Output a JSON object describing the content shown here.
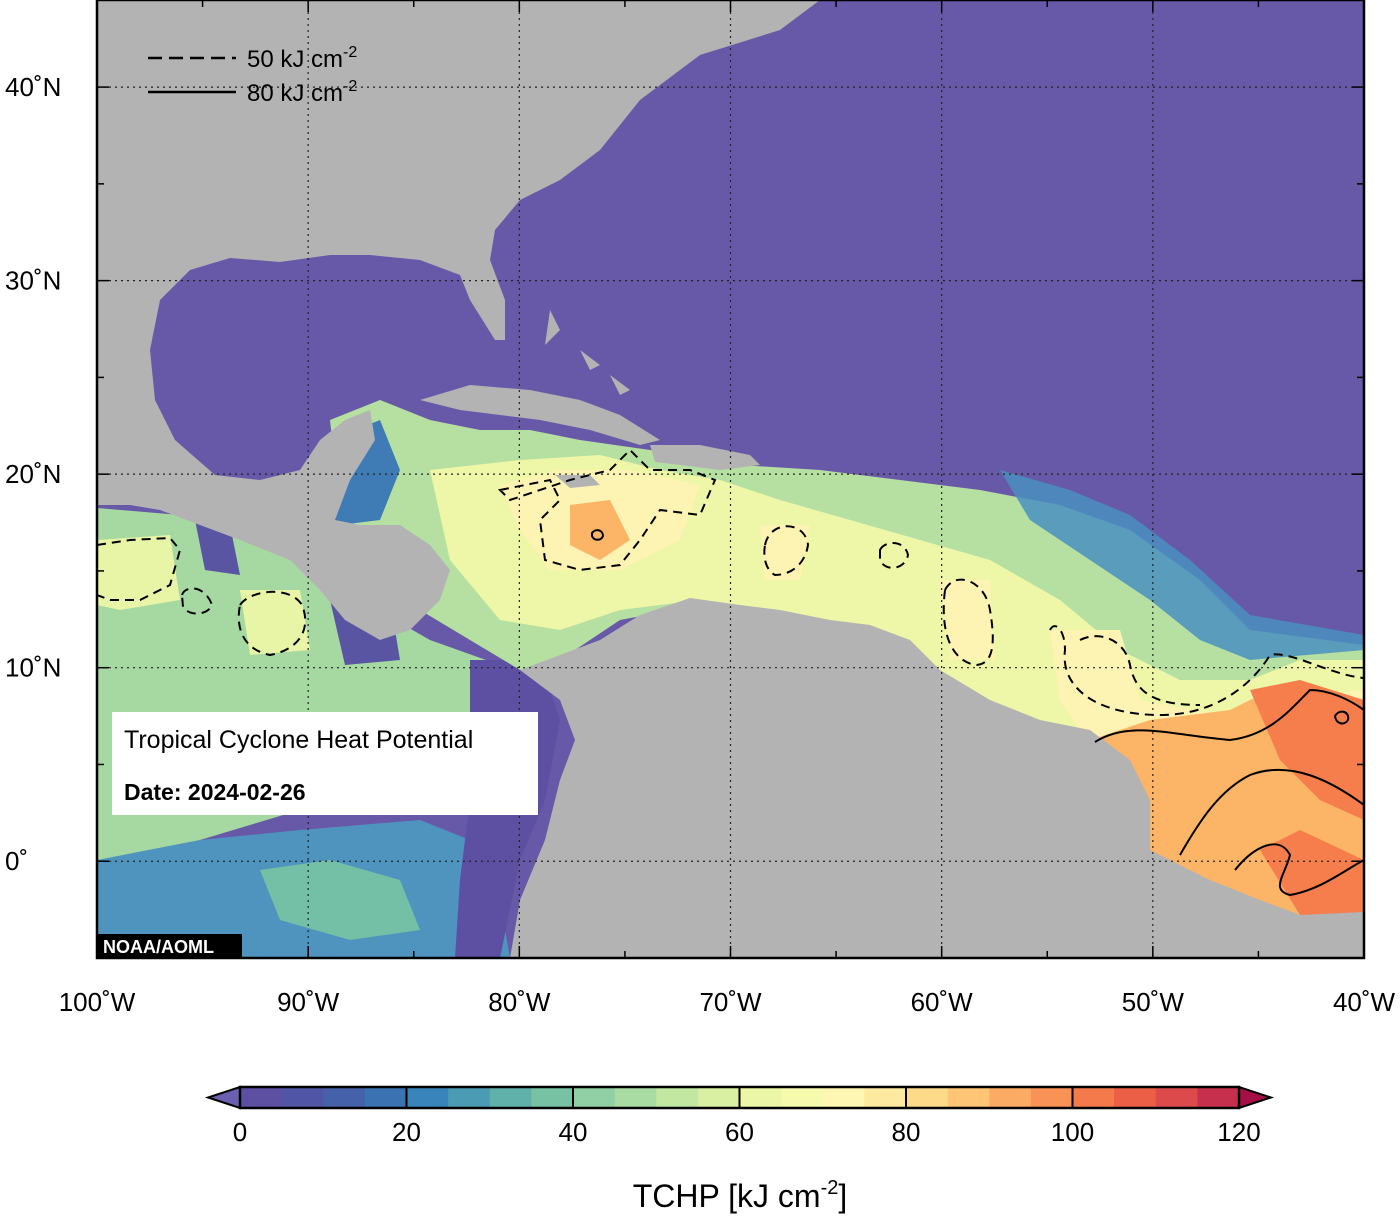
{
  "map": {
    "title": "Tropical Cyclone Heat Potential",
    "date_text": "Date: 2024-02-26",
    "credit": "NOAA/AOML",
    "region": "Gulf of Mexico, Caribbean Sea and tropical Atlantic Ocean",
    "extent": {
      "lon_min": -100,
      "lon_max": -40,
      "lat_min": -5,
      "lat_max": 44.5
    },
    "lon_ticks": [
      {
        "value": -100,
        "label": "100˚W"
      },
      {
        "value": -90,
        "label": "90˚W"
      },
      {
        "value": -80,
        "label": "80˚W"
      },
      {
        "value": -70,
        "label": "70˚W"
      },
      {
        "value": -60,
        "label": "60˚W"
      },
      {
        "value": -50,
        "label": "50˚W"
      },
      {
        "value": -40,
        "label": "40˚W"
      }
    ],
    "lat_ticks": [
      {
        "value": 40,
        "label": "40˚N"
      },
      {
        "value": 30,
        "label": "30˚N"
      },
      {
        "value": 20,
        "label": "20˚N"
      },
      {
        "value": 10,
        "label": "10˚N"
      },
      {
        "value": 0,
        "label": "0˚"
      }
    ],
    "contour_legend": [
      {
        "style": "dashed",
        "value_text": "50 kJ cm",
        "exponent": "-2"
      },
      {
        "style": "solid",
        "value_text": "80 kJ cm",
        "exponent": "-2"
      }
    ],
    "colors": {
      "land": "#b3b3b3",
      "low_tchp": "#6759a7",
      "frame": "#000000"
    }
  },
  "colorbar": {
    "label_text": "TCHP [kJ cm",
    "label_exponent": "-2",
    "label_close": "]",
    "min": 0,
    "max": 120,
    "step": 5,
    "tick_values": [
      0,
      20,
      40,
      60,
      80,
      100,
      120
    ],
    "tick_labels": [
      "0",
      "20",
      "40",
      "60",
      "80",
      "100",
      "120"
    ],
    "colors": [
      "#5d4fa2",
      "#5155a5",
      "#4561aa",
      "#3b73b2",
      "#3884bb",
      "#4a9bb3",
      "#5fb1aa",
      "#78c2a4",
      "#91cfa4",
      "#a9dca3",
      "#c1e7a1",
      "#d9f0a3",
      "#ebf6a6",
      "#f6faad",
      "#fdf7b3",
      "#fde9a0",
      "#fdd98a",
      "#fdc575",
      "#fcab64",
      "#f99256",
      "#f47a4c",
      "#ea5f46",
      "#dd4a4c",
      "#c7304c"
    ],
    "under_color": "#6b5fb0",
    "over_color": "#a50f45"
  }
}
